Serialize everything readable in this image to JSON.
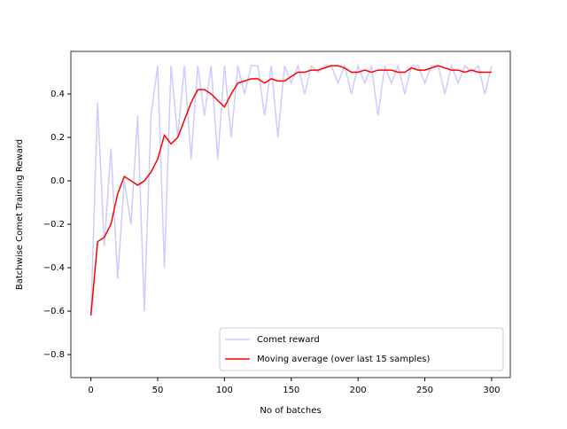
{
  "chart_data": {
    "type": "line",
    "xlabel": "No of batches",
    "ylabel": "Batchwise Comet Training Reward",
    "x": [
      0,
      5,
      10,
      15,
      20,
      25,
      30,
      35,
      40,
      45,
      50,
      55,
      60,
      65,
      70,
      75,
      80,
      85,
      90,
      95,
      100,
      105,
      110,
      115,
      120,
      125,
      130,
      135,
      140,
      145,
      150,
      155,
      160,
      165,
      170,
      175,
      180,
      185,
      190,
      195,
      200,
      205,
      210,
      215,
      220,
      225,
      230,
      235,
      240,
      245,
      250,
      255,
      260,
      265,
      270,
      275,
      280,
      285,
      290,
      295,
      300
    ],
    "series": [
      {
        "name": "Comet reward",
        "color": "#ccccff",
        "values": [
          -0.62,
          0.36,
          -0.3,
          0.15,
          -0.45,
          0.0,
          -0.2,
          0.3,
          -0.6,
          0.3,
          0.53,
          -0.4,
          0.53,
          0.2,
          0.53,
          0.1,
          0.53,
          0.3,
          0.53,
          0.1,
          0.53,
          0.2,
          0.53,
          0.4,
          0.53,
          0.53,
          0.3,
          0.53,
          0.2,
          0.53,
          0.45,
          0.53,
          0.4,
          0.53,
          0.5,
          0.53,
          0.53,
          0.45,
          0.53,
          0.4,
          0.53,
          0.45,
          0.53,
          0.3,
          0.53,
          0.45,
          0.53,
          0.4,
          0.53,
          0.53,
          0.45,
          0.53,
          0.53,
          0.4,
          0.53,
          0.45,
          0.53,
          0.5,
          0.53,
          0.4,
          0.53
        ]
      },
      {
        "name": "Moving average (over last 15 samples)",
        "color": "#ff0000",
        "values": [
          -0.62,
          -0.28,
          -0.26,
          -0.2,
          -0.06,
          0.02,
          0.0,
          -0.02,
          0.0,
          0.04,
          0.1,
          0.21,
          0.17,
          0.2,
          0.28,
          0.36,
          0.42,
          0.42,
          0.4,
          0.37,
          0.34,
          0.4,
          0.45,
          0.46,
          0.47,
          0.47,
          0.45,
          0.47,
          0.46,
          0.46,
          0.48,
          0.5,
          0.5,
          0.51,
          0.51,
          0.52,
          0.53,
          0.53,
          0.52,
          0.5,
          0.5,
          0.51,
          0.5,
          0.51,
          0.51,
          0.51,
          0.5,
          0.5,
          0.52,
          0.51,
          0.51,
          0.52,
          0.53,
          0.52,
          0.51,
          0.51,
          0.5,
          0.51,
          0.5,
          0.5,
          0.5
        ]
      }
    ],
    "xlim": [
      -15,
      314
    ],
    "ylim": [
      -0.906,
      0.596
    ],
    "xticks": [
      0,
      50,
      100,
      150,
      200,
      250,
      300
    ],
    "yticks": [
      {
        "value": -0.8,
        "label": "−0.8"
      },
      {
        "value": -0.6,
        "label": "−0.6"
      },
      {
        "value": -0.4,
        "label": "−0.4"
      },
      {
        "value": -0.2,
        "label": "−0.2"
      },
      {
        "value": 0,
        "label": "0.0"
      },
      0.2,
      0.4
    ],
    "legend": "lower right"
  }
}
